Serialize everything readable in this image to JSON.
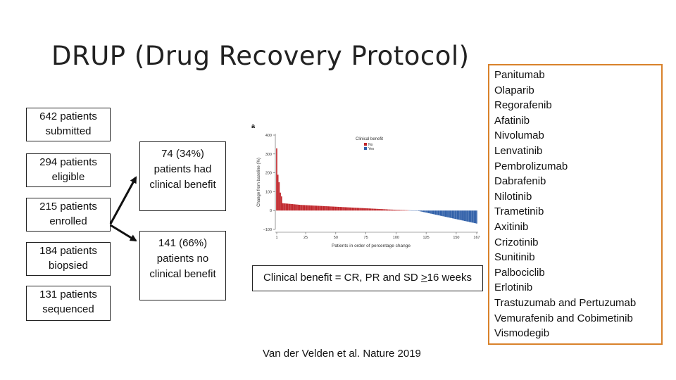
{
  "slide": {
    "title": "DRUP (Drug Recovery Protocol)",
    "funnel": [
      {
        "label": "642 patients submitted"
      },
      {
        "label": "294 patients eligible"
      },
      {
        "label": "215 patients enrolled"
      },
      {
        "label": "184 patients biopsied"
      },
      {
        "label": "131 patients sequenced"
      }
    ],
    "outcomes": {
      "benefit": "74 (34%) patients had clinical benefit",
      "no_benefit": "141 (66%) patients no clinical benefit"
    },
    "benefit_definition": {
      "prefix": "Clinical benefit = CR, PR and SD ",
      "symbol": ">",
      "suffix": "16 weeks"
    },
    "citation": "Van der Velden et al. Nature 2019",
    "drugs": [
      "Panitumab",
      "Olaparib",
      "Regorafenib",
      "Afatinib",
      "Nivolumab",
      "Lenvatinib",
      "Pembrolizumab",
      "Dabrafenib",
      "Nilotinib",
      "Trametinib",
      "Axitinib",
      "Crizotinib",
      "Sunitinib",
      "Palbociclib",
      "Erlotinib",
      "Trastuzumab and Pertuzumab",
      "Vemurafenib and Cobimetinib",
      "Vismodegib"
    ]
  },
  "chart_data": {
    "type": "bar",
    "panel_label": "a",
    "ylabel": "Change from baseline (%)",
    "xlabel": "Patients in order of percentage change",
    "ylim": [
      -100,
      400
    ],
    "y_ticks": [
      "400",
      "300",
      "200",
      "100",
      "0",
      "−100"
    ],
    "y_tick_values": [
      400,
      300,
      200,
      100,
      0,
      -100
    ],
    "x_ticks": [
      "1",
      "25",
      "50",
      "75",
      "100",
      "125",
      "150",
      "167"
    ],
    "x_tick_values": [
      1,
      25,
      50,
      75,
      100,
      125,
      150,
      167
    ],
    "legend_title": "Clinical benefit",
    "legend_position": "top-right",
    "series": [
      {
        "name": "No",
        "color": "#c0262b"
      },
      {
        "name": "Yes",
        "color": "#2f5fa8"
      }
    ],
    "n_patients": 167
  }
}
